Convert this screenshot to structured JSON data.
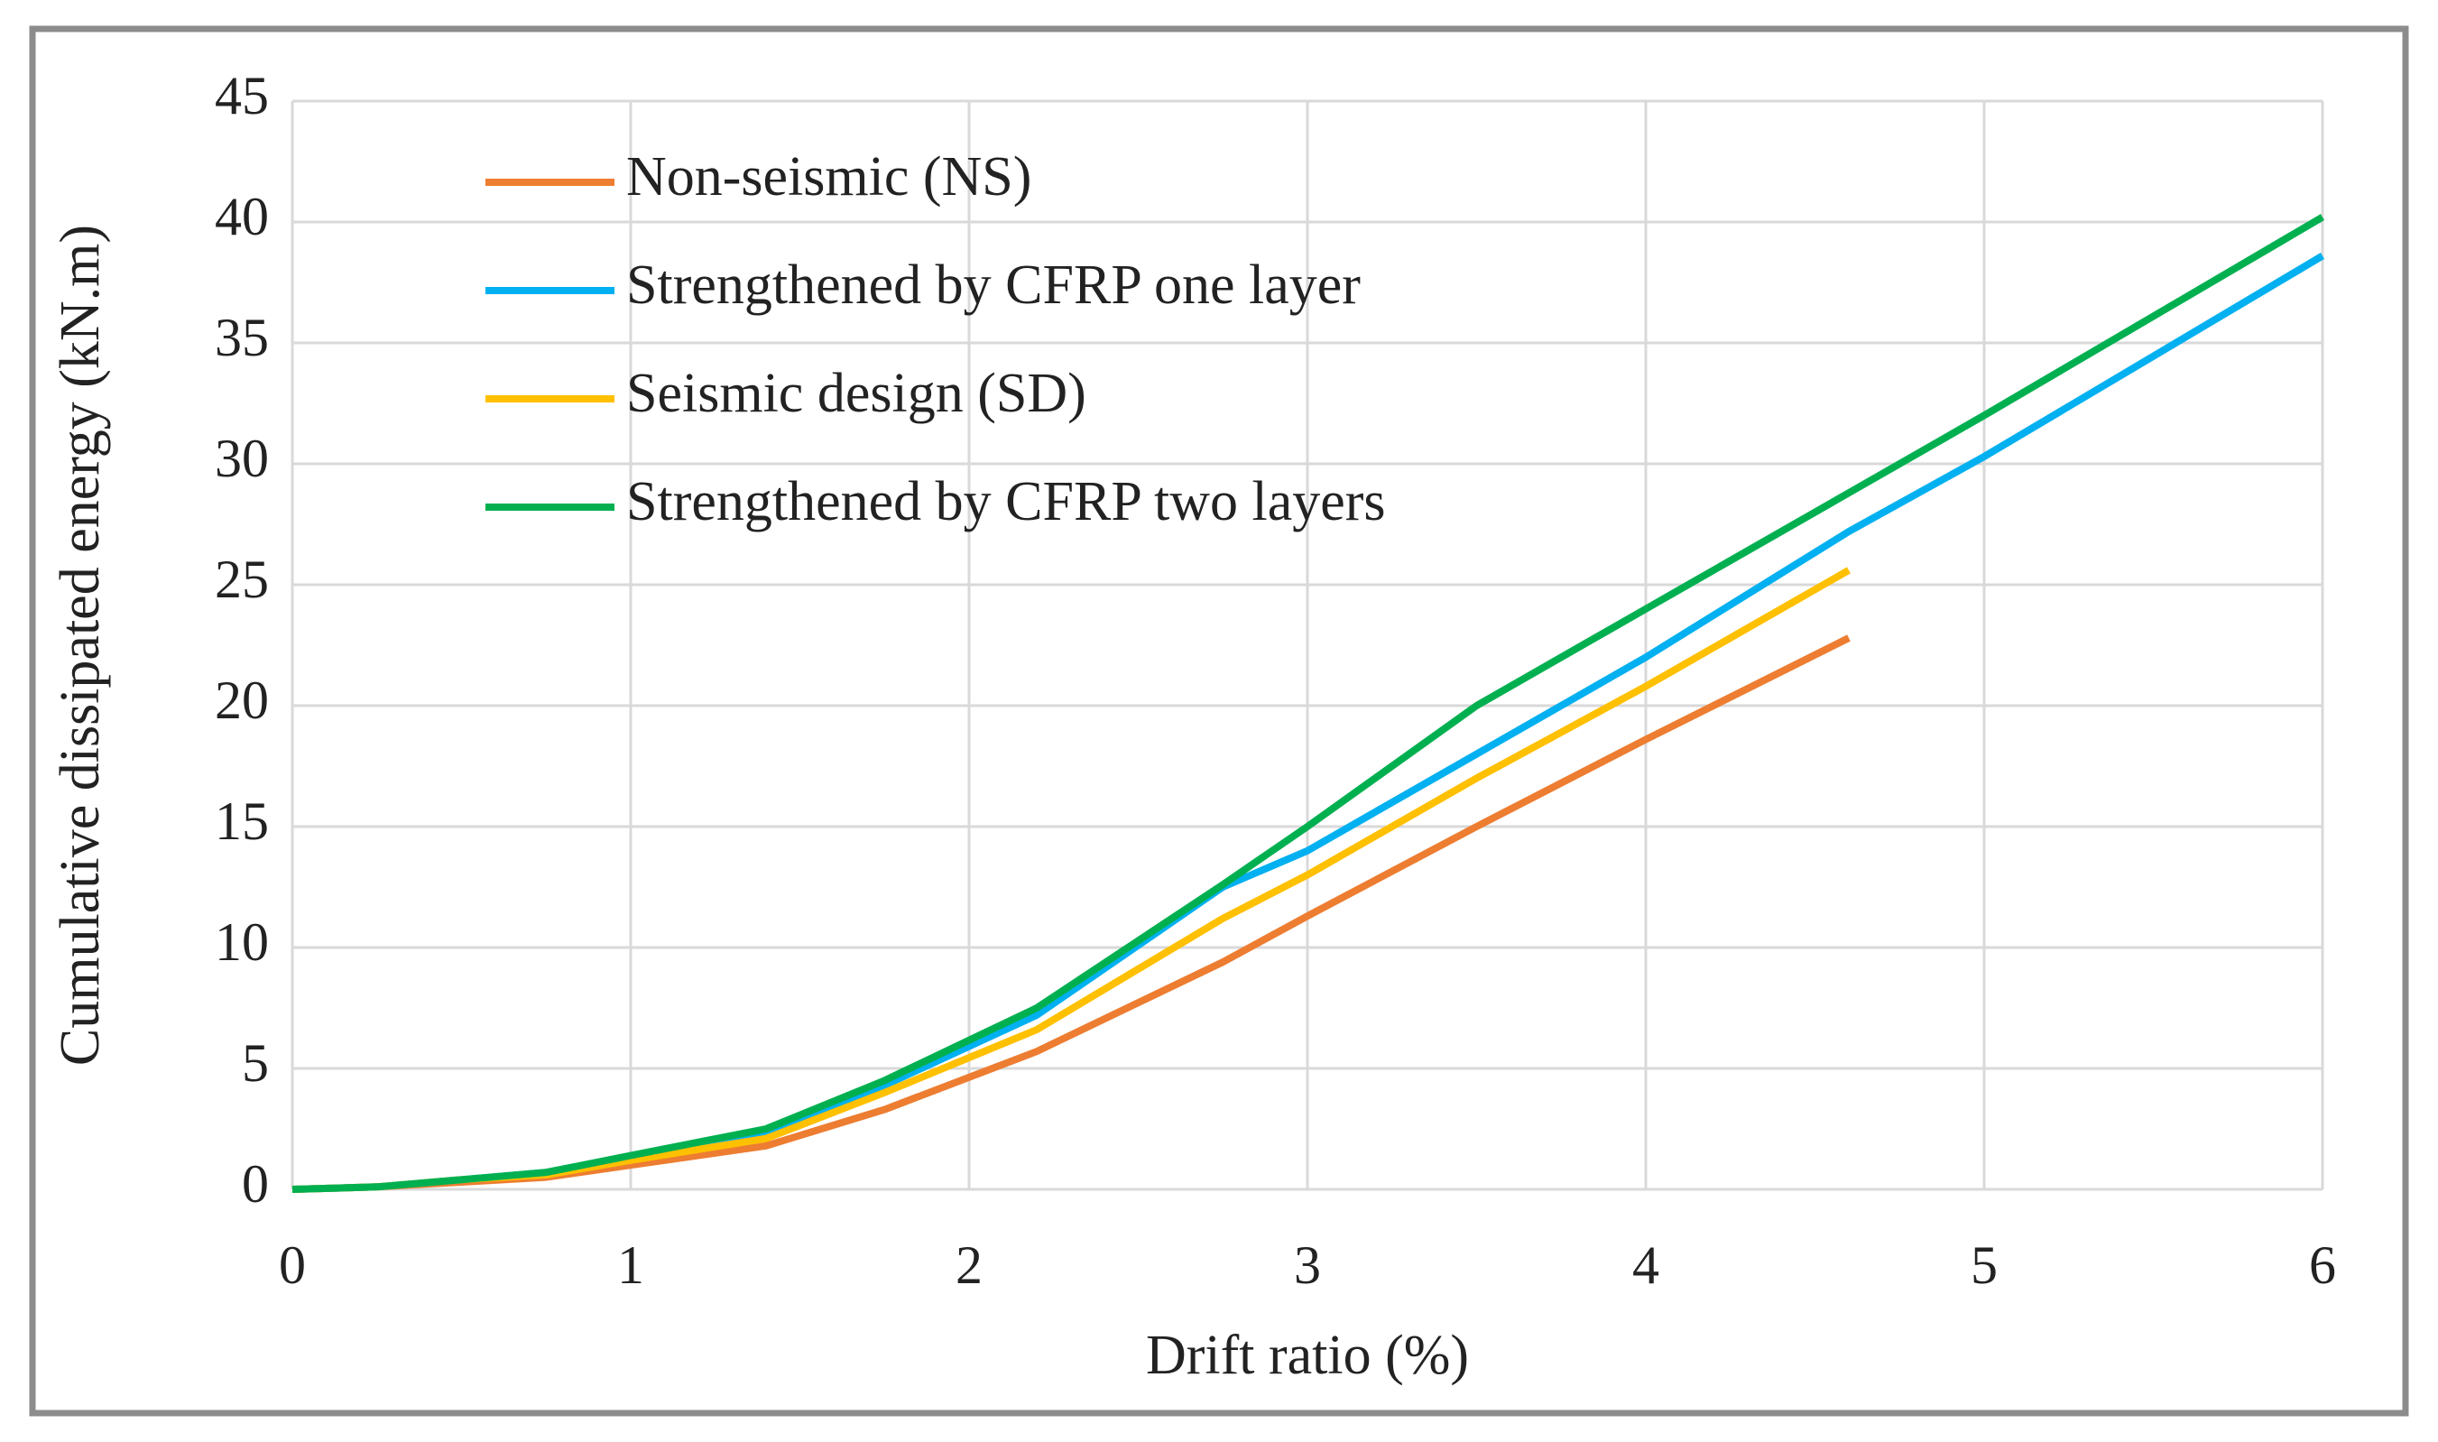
{
  "chart_data": {
    "type": "line",
    "x_label": "Drift ratio (%)",
    "y_label": "Cumulative dissipated energy  (kN.m)",
    "x": [
      0,
      0.25,
      0.5,
      0.75,
      1,
      1.4,
      1.75,
      2.2,
      2.75,
      3,
      3.5,
      4,
      4.6,
      5,
      6
    ],
    "series": [
      {
        "name": "Non-seismic (NS)",
        "color": "#ed7d31",
        "values": [
          0,
          0.1,
          0.3,
          0.5,
          1,
          1.8,
          3.3,
          5.7,
          9.4,
          11.3,
          15,
          18.6,
          22.8,
          null,
          null
        ]
      },
      {
        "name": "Strengthened by CFRP one layer",
        "color": "#00b0f0",
        "values": [
          0,
          0.1,
          0.4,
          0.7,
          1.3,
          2.3,
          4.3,
          7.2,
          12.5,
          14,
          18,
          22,
          27.2,
          30.3,
          38.6
        ]
      },
      {
        "name": "Seismic design (SD)",
        "color": "#ffc000",
        "values": [
          0,
          0.1,
          0.4,
          0.6,
          1.2,
          2.1,
          4,
          6.6,
          11.2,
          13,
          17,
          20.8,
          25.6,
          null,
          null
        ]
      },
      {
        "name": "Strengthened by CFRP two layers",
        "color": "#00b050",
        "values": [
          0,
          0.1,
          0.4,
          0.7,
          1.4,
          2.5,
          4.5,
          7.5,
          12.6,
          15,
          20,
          24,
          28.8,
          32,
          40.2
        ]
      }
    ],
    "xlim": [
      0,
      6
    ],
    "xticks": [
      0,
      1,
      2,
      3,
      4,
      5,
      6
    ],
    "ylim": [
      0,
      45
    ],
    "yticks": [
      0,
      5,
      10,
      15,
      20,
      25,
      30,
      35,
      40,
      45
    ],
    "grid": true,
    "legend": "upper left"
  }
}
